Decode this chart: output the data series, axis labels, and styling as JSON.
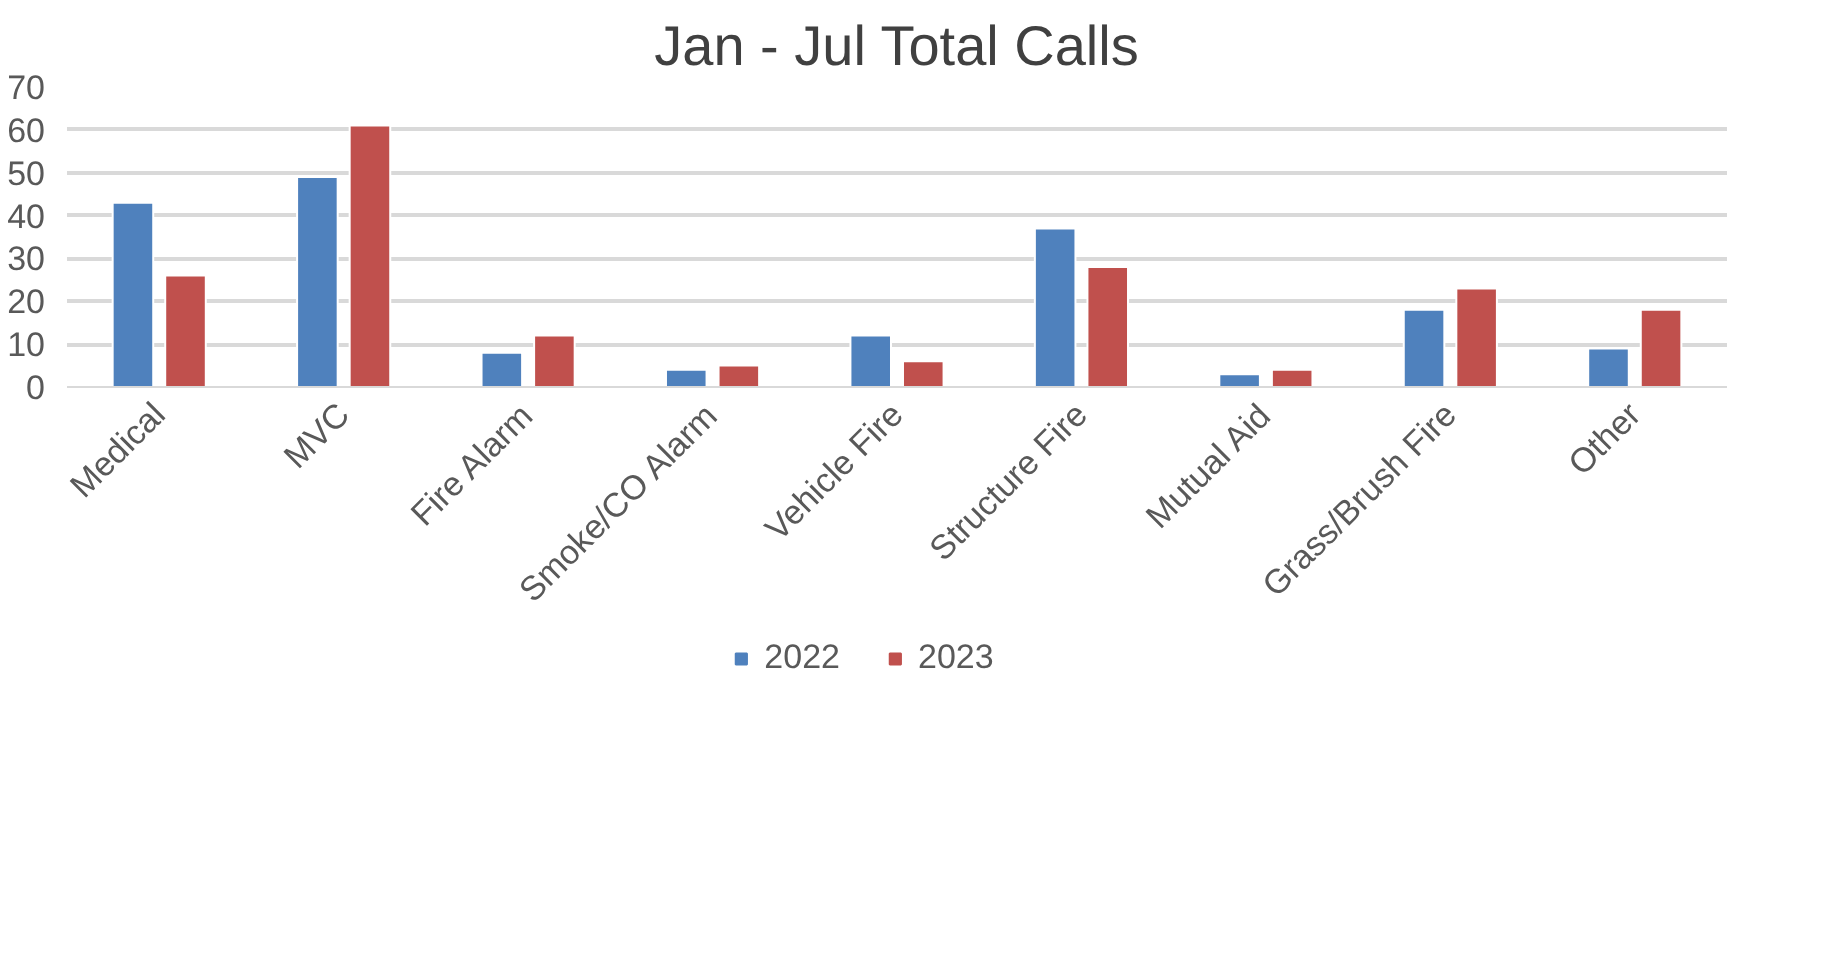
{
  "chart_data": {
    "type": "bar",
    "title": "Jan - Jul Total Calls",
    "categories": [
      "Medical",
      "MVC",
      "Fire Alarm",
      "Smoke/CO Alarm",
      "Vehicle Fire",
      "Structure Fire",
      "Mutual Aid",
      "Grass/Brush Fire",
      "Other"
    ],
    "series": [
      {
        "name": "2022",
        "color": "#4f81bd",
        "values": [
          43,
          49,
          8,
          4,
          12,
          37,
          3,
          18,
          9
        ]
      },
      {
        "name": "2023",
        "color": "#c0504d",
        "values": [
          26,
          61,
          12,
          5,
          6,
          28,
          4,
          23,
          18
        ]
      }
    ],
    "ylim": [
      0,
      70
    ],
    "yticks": [
      0,
      10,
      20,
      30,
      40,
      50,
      60,
      70
    ],
    "grid": "y",
    "legend": "bottom"
  }
}
